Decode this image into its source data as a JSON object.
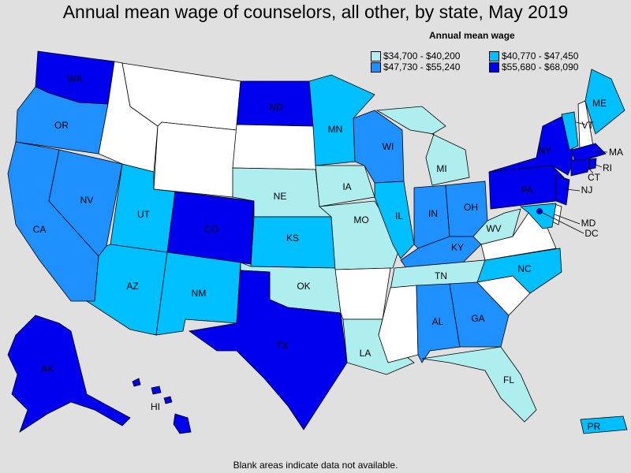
{
  "title": "Annual mean wage of counselors, all other, by state, May 2019",
  "legend": {
    "title": "Annual mean wage",
    "items": [
      {
        "range": "$34,700 - $40,200",
        "color": "#aeeeee"
      },
      {
        "range": "$40,770 - $47,450",
        "color": "#00bfff"
      },
      {
        "range": "$47,730 - $55,240",
        "color": "#1e90ff"
      },
      {
        "range": "$55,680 - $68,090",
        "color": "#0000ee"
      }
    ]
  },
  "blank_color": "#ffffff",
  "footnote": "Blank areas indicate data not available.",
  "states": {
    "WA": {
      "label": "WA",
      "tier": 3
    },
    "OR": {
      "label": "OR",
      "tier": 2
    },
    "CA": {
      "label": "CA",
      "tier": 2
    },
    "NV": {
      "label": "NV",
      "tier": 2
    },
    "ID": {
      "label": "",
      "tier": -1
    },
    "MT": {
      "label": "",
      "tier": -1
    },
    "WY": {
      "label": "",
      "tier": -1
    },
    "UT": {
      "label": "UT",
      "tier": 1
    },
    "AZ": {
      "label": "AZ",
      "tier": 1
    },
    "CO": {
      "label": "CO",
      "tier": 3
    },
    "NM": {
      "label": "NM",
      "tier": 1
    },
    "ND": {
      "label": "ND",
      "tier": 3
    },
    "SD": {
      "label": "",
      "tier": -1
    },
    "NE": {
      "label": "NE",
      "tier": 0
    },
    "KS": {
      "label": "KS",
      "tier": 1
    },
    "OK": {
      "label": "OK",
      "tier": 0
    },
    "TX": {
      "label": "TX",
      "tier": 3
    },
    "MN": {
      "label": "MN",
      "tier": 1
    },
    "IA": {
      "label": "IA",
      "tier": 0
    },
    "MO": {
      "label": "MO",
      "tier": 0
    },
    "AR": {
      "label": "",
      "tier": -1
    },
    "LA": {
      "label": "LA",
      "tier": 0
    },
    "WI": {
      "label": "WI",
      "tier": 2
    },
    "IL": {
      "label": "IL",
      "tier": 1
    },
    "MI": {
      "label": "MI",
      "tier": 0
    },
    "IN": {
      "label": "IN",
      "tier": 2
    },
    "OH": {
      "label": "OH",
      "tier": 2
    },
    "KY": {
      "label": "KY",
      "tier": 2
    },
    "TN": {
      "label": "TN",
      "tier": 0
    },
    "MS": {
      "label": "",
      "tier": -1
    },
    "AL": {
      "label": "AL",
      "tier": 2
    },
    "GA": {
      "label": "GA",
      "tier": 2
    },
    "FL": {
      "label": "FL",
      "tier": 0
    },
    "SC": {
      "label": "",
      "tier": -1
    },
    "NC": {
      "label": "NC",
      "tier": 1
    },
    "VA": {
      "label": "",
      "tier": -1
    },
    "WV": {
      "label": "WV",
      "tier": 0
    },
    "PA": {
      "label": "PA",
      "tier": 3
    },
    "NY": {
      "label": "NY",
      "tier": 3
    },
    "VT": {
      "label": "VT",
      "tier": 1
    },
    "NH": {
      "label": "",
      "tier": -1
    },
    "ME": {
      "label": "ME",
      "tier": 1
    },
    "MA": {
      "label": "MA",
      "tier": 3
    },
    "RI": {
      "label": "RI",
      "tier": 3
    },
    "CT": {
      "label": "CT",
      "tier": 3
    },
    "NJ": {
      "label": "NJ",
      "tier": 3
    },
    "DE": {
      "label": "",
      "tier": -1
    },
    "MD": {
      "label": "MD",
      "tier": 1
    },
    "DC": {
      "label": "DC",
      "tier": 3
    },
    "AK": {
      "label": "AK",
      "tier": 3
    },
    "HI": {
      "label": "HI",
      "tier": 3
    },
    "PR": {
      "label": "PR",
      "tier": 1
    }
  }
}
